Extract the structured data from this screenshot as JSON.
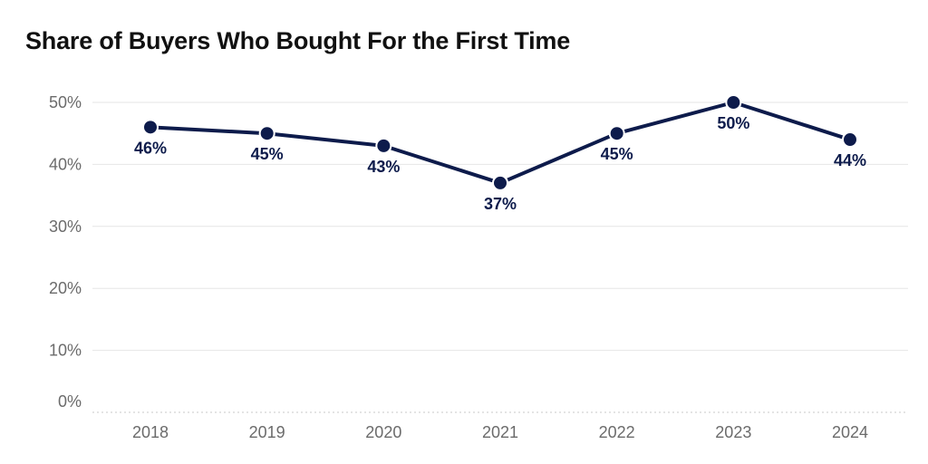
{
  "title": "Share of Buyers Who Bought For the First Time",
  "colors": {
    "series": "#0d1b4b",
    "grid": "#e6e6e6",
    "axis_text": "#6b6b6b"
  },
  "chart_data": {
    "type": "line",
    "title": "Share of Buyers Who Bought For the First Time",
    "xlabel": "",
    "ylabel": "",
    "categories": [
      "2018",
      "2019",
      "2020",
      "2021",
      "2022",
      "2023",
      "2024"
    ],
    "series": [
      {
        "values": [
          46,
          45,
          43,
          37,
          45,
          50,
          44
        ],
        "labels": [
          "46%",
          "45%",
          "43%",
          "37%",
          "45%",
          "50%",
          "44%"
        ]
      }
    ],
    "ylim": [
      0,
      50
    ],
    "yticks": [
      0,
      10,
      20,
      30,
      40,
      50
    ],
    "ytick_labels": [
      "0%",
      "10%",
      "20%",
      "30%",
      "40%",
      "50%"
    ],
    "grid": true,
    "legend": "none"
  }
}
